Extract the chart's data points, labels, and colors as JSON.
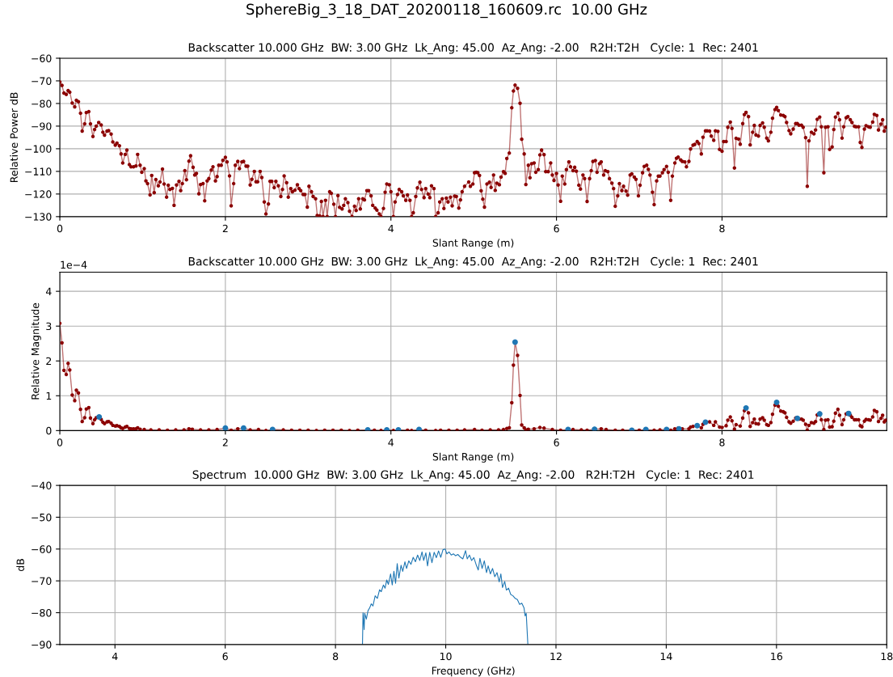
{
  "chart_data": [
    {
      "type": "line",
      "title": "Backscatter 10.000 GHz  BW: 3.00 GHz  Lk_Ang: 45.00  Az_Ang: -2.00   R2H:T2H   Cycle: 1  Rec: 2401",
      "xlabel": "Slant Range (m)",
      "ylabel": "Relative Power dB",
      "annotations": [
        "SphereBig_3_18_DAT_20200118_160609.rc  10.00 GHz"
      ],
      "xlim": [
        0,
        9.99
      ],
      "xticks": [
        0,
        2,
        4,
        6,
        8
      ],
      "ylim": [
        -130,
        -60
      ],
      "yticks": [
        -60,
        -70,
        -80,
        -90,
        -100,
        -110,
        -120,
        -130
      ],
      "grid": true,
      "marker": "circle",
      "line_style": "solid",
      "series": [
        {
          "color": "#8b0000",
          "x": [
            0,
            0.026,
            0.05,
            0.078,
            0.1,
            0.12,
            0.15,
            0.18,
            0.2,
            0.225,
            0.25,
            0.27,
            0.3,
            0.32,
            0.35,
            0.37,
            0.4,
            0.42,
            0.44,
            0.47,
            0.5,
            0.52,
            0.54,
            0.57,
            0.59,
            0.62,
            0.64,
            0.67,
            0.69,
            0.72,
            0.74,
            0.76,
            0.79,
            0.81,
            0.84,
            0.86,
            0.89,
            0.92,
            0.94,
            0.97,
            0.99,
            1.02,
            1.04,
            1.06,
            1.09,
            1.11,
            1.14,
            1.16,
            1.19,
            1.21,
            1.24,
            1.26,
            1.29,
            1.31,
            1.33,
            1.36,
            1.38,
            1.41,
            1.44,
            1.46,
            1.48,
            1.51,
            1.53,
            1.56,
            1.58,
            1.61,
            1.63,
            1.65,
            1.68,
            1.7,
            1.73,
            1.75,
            1.78,
            1.8,
            1.83,
            1.85,
            1.88,
            1.9,
            1.92,
            1.95,
            1.97,
            2.0,
            2.02,
            2.05,
            2.07,
            2.1,
            2.12,
            2.15,
            2.17,
            2.2,
            2.22,
            2.25,
            2.27,
            2.3,
            2.32,
            2.35,
            2.37,
            2.39,
            2.42,
            2.44,
            2.47,
            2.49,
            2.52,
            2.54,
            2.56,
            2.59,
            2.61,
            2.64,
            2.67,
            2.69,
            2.71,
            2.74,
            2.76,
            2.79,
            2.81,
            2.84,
            2.87,
            2.89,
            2.91,
            2.94,
            2.96,
            2.99,
            3.01,
            3.04,
            3.06,
            3.09,
            3.11,
            3.14,
            3.16,
            3.18,
            3.21,
            3.23,
            3.26,
            3.28,
            3.31,
            3.33,
            3.36,
            3.38,
            3.41,
            3.43,
            3.45,
            3.48,
            3.5,
            3.53,
            3.56,
            3.58,
            3.61,
            3.63,
            3.66,
            3.68,
            3.71,
            3.73,
            3.76,
            3.78,
            3.81,
            3.83,
            3.86,
            3.88,
            3.91,
            3.93,
            3.95,
            3.98,
            4.0,
            4.03,
            4.05,
            4.08,
            4.1,
            4.13,
            4.15,
            4.18,
            4.2,
            4.23,
            4.25,
            4.27,
            4.3,
            4.32,
            4.35,
            4.37,
            4.4,
            4.42,
            4.45,
            4.47,
            4.49,
            4.52,
            4.54,
            4.57,
            4.59,
            4.62,
            4.64,
            4.67,
            4.69,
            4.72,
            4.74,
            4.77,
            4.79,
            4.82,
            4.84,
            4.86,
            4.89,
            4.94,
            4.96,
            4.99,
            5.01,
            5.03,
            5.05,
            5.07,
            5.09,
            5.11,
            5.13,
            5.16,
            5.19,
            5.21,
            5.24,
            5.26,
            5.28,
            5.31,
            5.33,
            5.36,
            5.38,
            5.4,
            5.43,
            5.46,
            5.48,
            5.5,
            5.53,
            5.56,
            5.58,
            5.61,
            5.63,
            5.66,
            5.68,
            5.7,
            5.73,
            5.75,
            5.78,
            5.8,
            5.82,
            5.85,
            5.87,
            5.9,
            5.93,
            5.95,
            5.97,
            6.0,
            6.02,
            6.05,
            6.07,
            6.1,
            6.12,
            6.15,
            6.17,
            6.2,
            6.22,
            6.24,
            6.27,
            6.29,
            6.32,
            6.34,
            6.37,
            6.4,
            6.42,
            6.44,
            6.47,
            6.49,
            6.52,
            6.54,
            6.57,
            6.59,
            6.62,
            6.64,
            6.67,
            6.69,
            6.71,
            6.74,
            6.76,
            6.79,
            6.81,
            6.84,
            6.86,
            6.89,
            6.91,
            6.94,
            6.96,
            6.99,
            7.01,
            7.04,
            7.06,
            7.09,
            7.11,
            7.13,
            7.16,
            7.18,
            7.21,
            7.23,
            7.25,
            7.28,
            7.3,
            7.33,
            7.35,
            7.38,
            7.4,
            7.43,
            7.45,
            7.47,
            7.5,
            7.52,
            7.55,
            7.57,
            7.6,
            7.62,
            7.65,
            7.67,
            7.7,
            7.72,
            7.75,
            7.77,
            7.8,
            7.82,
            7.85,
            7.87,
            7.9,
            7.92,
            7.95,
            7.97,
            8.0,
            8.02,
            8.05,
            8.07,
            8.1,
            8.12,
            8.15,
            8.17,
            8.2,
            8.22,
            8.25,
            8.27,
            8.29,
            8.32,
            8.34,
            8.37,
            8.39,
            8.41,
            8.44,
            8.46,
            8.49,
            8.51,
            8.54,
            8.56,
            8.59,
            8.61,
            8.64,
            8.66,
            8.68,
            8.71,
            8.74,
            8.76,
            8.78,
            8.81,
            8.83,
            8.86,
            8.89,
            8.91,
            8.93,
            8.96,
            8.98,
            9.01,
            9.03,
            9.05,
            9.08,
            9.11,
            9.13,
            9.15,
            9.18,
            9.2,
            9.23,
            9.25,
            9.28,
            9.3,
            9.33,
            9.35,
            9.37,
            9.4,
            9.42,
            9.45,
            9.47,
            9.5,
            9.52,
            9.55,
            9.57,
            9.6,
            9.62,
            9.65,
            9.67,
            9.69,
            9.72,
            9.74,
            9.77,
            9.79,
            9.82,
            9.84,
            9.87,
            9.89,
            9.92,
            9.94,
            9.96,
            9.98
          ],
          "values": [
            -70.5,
            -72,
            -75.4,
            -76,
            -74.3,
            -75,
            -79.8,
            -81.5,
            -78.6,
            -79.2,
            -84.3,
            -92.2,
            -89,
            -84,
            -83.6,
            -89,
            -94.6,
            -91.5,
            -90,
            -88.4,
            -89.5,
            -92.7,
            -94,
            -92.2,
            -92,
            -93.5,
            -97,
            -98.4,
            -97.5,
            -98.7,
            -102.3,
            -106.3,
            -102.5,
            -100.6,
            -107,
            -108,
            -108,
            -107.6,
            -102.5,
            -107.3,
            -110.4,
            -108.8,
            -114.2,
            -115.4,
            -120.4,
            -111.8,
            -119.4,
            -113.6,
            -116.4,
            -114.7,
            -109,
            -115.6,
            -121.4,
            -116.1,
            -118,
            -117.5,
            -125,
            -116,
            -114.4,
            -118.5,
            -115.4,
            -109.7,
            -113.7,
            -105.5,
            -103.1,
            -108.2,
            -111.6,
            -110.9,
            -119.9,
            -115.8,
            -115.4,
            -123,
            -114.2,
            -113.2,
            -109.4,
            -108,
            -114.2,
            -112.3,
            -107.3,
            -107.3,
            -105.1,
            -103.8,
            -105.8,
            -112,
            -125.2,
            -115.4,
            -107.3,
            -105.6,
            -108.8,
            -105.8,
            -105.6,
            -107.7,
            -107.7,
            -116,
            -113.5,
            -110,
            -114.6,
            -114.6,
            -110,
            -112.7,
            -123.5,
            -128.8,
            -124.4,
            -114.4,
            -114.4,
            -117.2,
            -114.4,
            -116.4,
            -121.1,
            -118,
            -112,
            -115,
            -121.4,
            -117.6,
            -119,
            -118.3,
            -115.9,
            -117.6,
            -118.5,
            -120.2,
            -120.2,
            -125.8,
            -116.6,
            -119,
            -121.1,
            -122.1,
            -129.5,
            -129.7,
            -123.3,
            -130,
            -122.8,
            -130,
            -119,
            -119.7,
            -124.5,
            -130,
            -120.7,
            -125.9,
            -126.6,
            -125,
            -122.1,
            -123.8,
            -127.6,
            -130,
            -125.4,
            -127.3,
            -122.1,
            -126.6,
            -122.1,
            -122.6,
            -118.5,
            -118.5,
            -120.8,
            -125,
            -126.2,
            -127.1,
            -128.8,
            -130,
            -126.4,
            -119.2,
            -115.6,
            -115.9,
            -119,
            -130,
            -123.5,
            -120.2,
            -118,
            -119,
            -120.8,
            -122.8,
            -120.4,
            -122.8,
            -130,
            -128.3,
            -121.1,
            -117.3,
            -114.8,
            -118,
            -121.6,
            -117.6,
            -120,
            -121.6,
            -116.4,
            -117.6,
            -130,
            -128.3,
            -123.5,
            -122.1,
            -126.4,
            -121.8,
            -123.5,
            -121.4,
            -125.2,
            -120.9,
            -121.1,
            -126.2,
            -122.6,
            -119,
            -116.6,
            -114.7,
            -116.6,
            -115.6,
            -110.6,
            -110.4,
            -110.6,
            -111.8,
            -118.6,
            -122.3,
            -125.8,
            -115.6,
            -114.8,
            -117.1,
            -111.6,
            -118.4,
            -115.2,
            -115.9,
            -112.5,
            -110.1,
            -110.9,
            -104.3,
            -101.9,
            -81.9,
            -74.5,
            -71.9,
            -73.3,
            -79.9,
            -95.8,
            -102.3,
            -115.8,
            -107.3,
            -112.8,
            -106.6,
            -106.3,
            -110.4,
            -109.2,
            -102.7,
            -100.6,
            -102.6,
            -110.1,
            -110.1,
            -106.3,
            -111.6,
            -114,
            -110.9,
            -116,
            -123.2,
            -112.1,
            -115.6,
            -109.2,
            -105.8,
            -108,
            -109.7,
            -108.2,
            -109.9,
            -116.1,
            -117.8,
            -111.6,
            -113.2,
            -123.3,
            -113.2,
            -109.7,
            -105.6,
            -105.2,
            -110.4,
            -106.6,
            -105.8,
            -111.6,
            -109.7,
            -110.1,
            -113.2,
            -115.2,
            -117.6,
            -125.4,
            -120.8,
            -115.4,
            -118.5,
            -116.6,
            -118.7,
            -120.5,
            -111.6,
            -111.1,
            -112.5,
            -113.5,
            -120.8,
            -116.1,
            -110.6,
            -107.8,
            -107.3,
            -109.1,
            -111.6,
            -119.2,
            -124.7,
            -114.2,
            -112.1,
            -112.1,
            -110.6,
            -109.2,
            -107.8,
            -110.4,
            -122.8,
            -112.1,
            -106.3,
            -104.2,
            -103.7,
            -104.9,
            -105.6,
            -105.8,
            -108,
            -105.6,
            -100.1,
            -98.4,
            -98.1,
            -96.8,
            -97.7,
            -102.3,
            -94.9,
            -92.1,
            -92.1,
            -92.2,
            -94.4,
            -96.3,
            -92.1,
            -92.3,
            -100.3,
            -101.1,
            -96.8,
            -96.8,
            -90.5,
            -88.2,
            -91,
            -108.5,
            -95.4,
            -95.7,
            -98,
            -88.9,
            -84.9,
            -83.9,
            -85.8,
            -98.3,
            -92.7,
            -89.7,
            -93.9,
            -94.4,
            -89.7,
            -88.6,
            -90.5,
            -95.3,
            -96.5,
            -92.7,
            -86.5,
            -82.7,
            -81.7,
            -83.1,
            -85.1,
            -85.3,
            -85.8,
            -88.4,
            -92,
            -93.4,
            -91.3,
            -88.9,
            -88.9,
            -89.6,
            -89.6,
            -90.5,
            -95.1,
            -116.6,
            -96.5,
            -92.7,
            -93.4,
            -91.7,
            -87,
            -86,
            -90.3,
            -110.6,
            -90.5,
            -90.3,
            -100.3,
            -99.2,
            -91.5,
            -86,
            -84.3,
            -87.2,
            -95.3,
            -90.3,
            -86.3,
            -85.8,
            -87.2,
            -88.4,
            -90.1,
            -90.3,
            -90.3,
            -97.2,
            -99.4,
            -91.3,
            -89.8,
            -90.3,
            -90.5,
            -88.2,
            -84.8,
            -85.3,
            -91.7,
            -89.1,
            -87.2,
            -92.2,
            -90.5
          ]
        }
      ]
    },
    {
      "type": "line",
      "title": "Backscatter 10.000 GHz  BW: 3.00 GHz  Lk_Ang: 45.00  Az_Ang: -2.00   R2H:T2H   Cycle: 1  Rec: 2401",
      "xlabel": "Slant Range (m)",
      "ylabel": "Relative Magnitude",
      "annotations": [
        "1e−4"
      ],
      "xlim": [
        0,
        9.99
      ],
      "xticks": [
        0,
        2,
        4,
        6,
        8
      ],
      "ylim": [
        0,
        4.55
      ],
      "yticks": [
        0,
        1,
        2,
        3,
        4
      ],
      "grid": true,
      "marker": "circle",
      "line_style": "solid",
      "series": [
        {
          "color": "#8b0000",
          "x": [
            0,
            0.026,
            0.05,
            0.078,
            0.1,
            0.12,
            0.15,
            0.18,
            0.2,
            0.225,
            0.25,
            0.27,
            0.3,
            0.32,
            0.35,
            0.37,
            0.4,
            0.42,
            0.44,
            0.47,
            0.5,
            0.52,
            0.54,
            0.57,
            0.59,
            0.62,
            0.64,
            0.67,
            0.69,
            0.72,
            0.74,
            0.76,
            0.79,
            0.81,
            0.84,
            0.86,
            0.89,
            0.92,
            0.94,
            0.97,
            1.02,
            1.1,
            1.2,
            1.3,
            1.4,
            1.5,
            1.56,
            1.6,
            1.7,
            1.8,
            1.9,
            2.0,
            2.07,
            2.15,
            2.22,
            2.3,
            2.4,
            2.49,
            2.57,
            2.7,
            2.8,
            2.9,
            3.0,
            3.1,
            3.2,
            3.3,
            3.4,
            3.5,
            3.6,
            3.72,
            3.8,
            3.88,
            3.95,
            4.03,
            4.09,
            4.2,
            4.25,
            4.34,
            4.42,
            4.54,
            4.6,
            4.7,
            4.8,
            4.89,
            5.01,
            5.1,
            5.2,
            5.3,
            5.36,
            5.4,
            5.43,
            5.46,
            5.48,
            5.5,
            5.53,
            5.56,
            5.58,
            5.61,
            5.63,
            5.66,
            5.73,
            5.8,
            5.85,
            5.95,
            6.05,
            6.14,
            6.2,
            6.3,
            6.37,
            6.46,
            6.54,
            6.6,
            6.71,
            6.8,
            6.91,
            7.0,
            7.08,
            7.18,
            7.25,
            7.33,
            7.38,
            7.43,
            7.47,
            7.52,
            7.6,
            7.62,
            7.65,
            7.7,
            7.75,
            7.77,
            7.8,
            7.85,
            7.9,
            7.92,
            7.97,
            8.0,
            8.05,
            8.07,
            8.1,
            8.12,
            8.15,
            8.17,
            8.22,
            8.25,
            8.27,
            8.29,
            8.32,
            8.34,
            8.37,
            8.39,
            8.41,
            8.44,
            8.46,
            8.49,
            8.51,
            8.54,
            8.56,
            8.59,
            8.61,
            8.64,
            8.66,
            8.68,
            8.71,
            8.74,
            8.76,
            8.78,
            8.81,
            8.83,
            8.86,
            8.89,
            8.91,
            8.93,
            8.96,
            8.98,
            9.01,
            9.03,
            9.05,
            9.08,
            9.11,
            9.13,
            9.15,
            9.18,
            9.2,
            9.23,
            9.25,
            9.28,
            9.3,
            9.33,
            9.35,
            9.37,
            9.4,
            9.42,
            9.45,
            9.47,
            9.5,
            9.52,
            9.55,
            9.57,
            9.6,
            9.62,
            9.65,
            9.67,
            9.69,
            9.72,
            9.74,
            9.77,
            9.79,
            9.82,
            9.84,
            9.87,
            9.89,
            9.92,
            9.94,
            9.96,
            9.98
          ],
          "values": [
            3.08,
            2.52,
            1.73,
            1.61,
            1.93,
            1.74,
            1.02,
            0.86,
            1.16,
            1.08,
            0.61,
            0.26,
            0.37,
            0.62,
            0.66,
            0.36,
            0.2,
            0.31,
            0.37,
            0.39,
            0.32,
            0.24,
            0.2,
            0.25,
            0.26,
            0.21,
            0.15,
            0.13,
            0.14,
            0.12,
            0.08,
            0.06,
            0.1,
            0.12,
            0.06,
            0.05,
            0.05,
            0.05,
            0.08,
            0.04,
            0.03,
            0.02,
            0.02,
            0.01,
            0.02,
            0.02,
            0.05,
            0.04,
            0.02,
            0.02,
            0.03,
            0.07,
            0.01,
            0.05,
            0.07,
            0.02,
            0.03,
            0.0,
            0.03,
            0.02,
            0.01,
            0.01,
            0.01,
            0.0,
            0.01,
            0.01,
            0.01,
            0.0,
            0.01,
            0.02,
            0.01,
            0.0,
            0.02,
            0.0,
            0.02,
            0.01,
            0.0,
            0.03,
            0.01,
            0.0,
            0.01,
            0.01,
            0.01,
            0.02,
            0.03,
            0.01,
            0.02,
            0.02,
            0.03,
            0.06,
            0.08,
            0.8,
            1.88,
            2.54,
            2.16,
            1.01,
            0.16,
            0.08,
            0.02,
            0.04,
            0.05,
            0.09,
            0.07,
            0.03,
            0.01,
            0.03,
            0.03,
            0.02,
            0.01,
            0.04,
            0.05,
            0.03,
            0.01,
            0.01,
            0.02,
            0.01,
            0.03,
            0.01,
            0.02,
            0.03,
            0.01,
            0.05,
            0.07,
            0.05,
            0.05,
            0.1,
            0.12,
            0.14,
            0.08,
            0.18,
            0.25,
            0.25,
            0.15,
            0.25,
            0.1,
            0.09,
            0.14,
            0.3,
            0.39,
            0.28,
            0.04,
            0.17,
            0.13,
            0.36,
            0.57,
            0.64,
            0.51,
            0.12,
            0.23,
            0.33,
            0.2,
            0.19,
            0.33,
            0.37,
            0.3,
            0.17,
            0.15,
            0.23,
            0.47,
            0.73,
            0.82,
            0.7,
            0.56,
            0.54,
            0.51,
            0.38,
            0.25,
            0.21,
            0.27,
            0.36,
            0.36,
            0.33,
            0.33,
            0.3,
            0.18,
            0.01,
            0.15,
            0.23,
            0.21,
            0.26,
            0.45,
            0.5,
            0.31,
            0.03,
            0.3,
            0.31,
            0.1,
            0.11,
            0.27,
            0.5,
            0.61,
            0.44,
            0.17,
            0.31,
            0.48,
            0.51,
            0.44,
            0.38,
            0.31,
            0.31,
            0.31,
            0.14,
            0.11,
            0.27,
            0.32,
            0.31,
            0.3,
            0.39,
            0.58,
            0.54,
            0.26,
            0.35,
            0.44,
            0.25,
            0.3
          ]
        },
        {
          "type": "scatter",
          "color": "#1f77b4",
          "x": [
            0.475,
            2.0,
            2.22,
            2.57,
            3.72,
            3.95,
            4.09,
            4.34,
            5.5,
            6.14,
            6.46,
            6.91,
            7.08,
            7.33,
            7.48,
            7.7,
            7.8,
            8.29,
            8.66,
            8.91,
            9.18,
            9.53
          ],
          "values": [
            0.39,
            0.07,
            0.07,
            0.03,
            0.02,
            0.02,
            0.02,
            0.03,
            2.54,
            0.03,
            0.04,
            0.01,
            0.03,
            0.03,
            0.05,
            0.14,
            0.24,
            0.65,
            0.81,
            0.35,
            0.48,
            0.49
          ]
        }
      ]
    },
    {
      "type": "line",
      "title": "Spectrum  10.000 GHz  BW: 3.00 GHz  Lk_Ang: 45.00  Az_Ang: -2.00   R2H:T2H   Cycle: 1  Rec: 2401",
      "xlabel": "Frequency (GHz)",
      "ylabel": "dB",
      "xlim": [
        3,
        18
      ],
      "xticks": [
        4,
        6,
        8,
        10,
        12,
        14,
        16,
        18
      ],
      "ylim": [
        -90,
        -40
      ],
      "yticks": [
        -40,
        -50,
        -60,
        -70,
        -80,
        -90
      ],
      "grid": true,
      "line_style": "solid",
      "series": [
        {
          "color": "#1f77b4",
          "x": [
            8.49,
            8.5,
            8.52,
            8.53,
            8.56,
            8.59,
            8.62,
            8.65,
            8.68,
            8.72,
            8.76,
            8.8,
            8.83,
            8.87,
            8.9,
            8.93,
            8.96,
            9.0,
            9.03,
            9.06,
            9.09,
            9.12,
            9.15,
            9.19,
            9.22,
            9.26,
            9.29,
            9.33,
            9.37,
            9.41,
            9.45,
            9.49,
            9.53,
            9.57,
            9.6,
            9.64,
            9.67,
            9.71,
            9.75,
            9.79,
            9.83,
            9.87,
            9.91,
            9.95,
            9.99,
            10.02,
            10.06,
            10.1,
            10.14,
            10.18,
            10.22,
            10.27,
            10.31,
            10.36,
            10.39,
            10.43,
            10.47,
            10.51,
            10.55,
            10.59,
            10.62,
            10.66,
            10.7,
            10.74,
            10.77,
            10.81,
            10.85,
            10.89,
            10.93,
            10.97,
            11.0,
            11.03,
            11.07,
            11.1,
            11.14,
            11.18,
            11.22,
            11.26,
            11.3,
            11.34,
            11.38,
            11.42,
            11.44,
            11.46,
            11.49
          ],
          "values": [
            -90,
            -80,
            -85.3,
            -80.2,
            -82,
            -79.4,
            -78.5,
            -77.2,
            -77.9,
            -74.7,
            -75.5,
            -72.8,
            -73.4,
            -71.3,
            -72.3,
            -69.7,
            -71.1,
            -67.8,
            -71.3,
            -67,
            -70.8,
            -64.6,
            -69.1,
            -65.1,
            -67,
            -64,
            -66.1,
            -63.7,
            -64.8,
            -62.6,
            -64,
            -61.9,
            -63.6,
            -60.9,
            -63.6,
            -61.2,
            -65.3,
            -61,
            -64.3,
            -61,
            -62.7,
            -60.6,
            -62.6,
            -60.2,
            -60,
            -61.5,
            -60.9,
            -61.9,
            -61.5,
            -62.1,
            -61.7,
            -62.6,
            -63.1,
            -60.5,
            -63.1,
            -61.9,
            -63.6,
            -62.7,
            -64.8,
            -66.6,
            -62.9,
            -66.1,
            -63.7,
            -67.4,
            -65.3,
            -67.8,
            -66.1,
            -68.7,
            -67.4,
            -70.3,
            -67.8,
            -72.1,
            -70.2,
            -72.9,
            -72.3,
            -74.3,
            -74.7,
            -75.5,
            -75.9,
            -77.4,
            -77,
            -78.5,
            -81,
            -80.2,
            -90
          ]
        }
      ]
    }
  ]
}
